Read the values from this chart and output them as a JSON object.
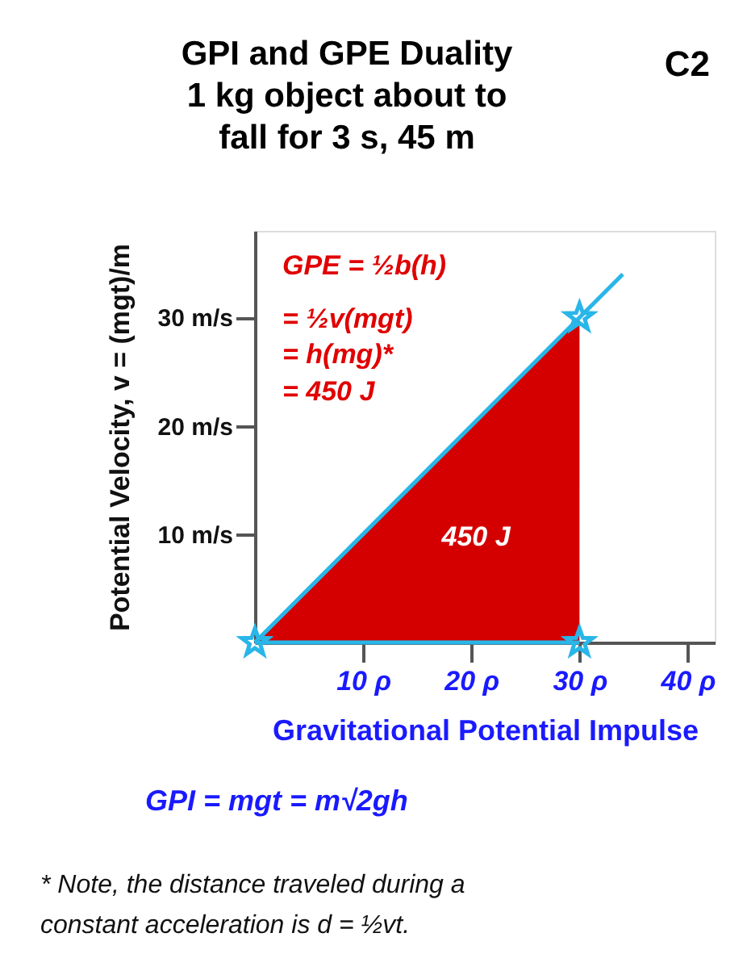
{
  "chart_data": {
    "type": "area",
    "title": "GPI and GPE Duality\n1 kg object about to\nfall for 3 s, 45 m",
    "xlabel": "Gravitational Potential Impulse",
    "ylabel": "Potential Velocity, v = (mgt)/m",
    "xlim": [
      0,
      42.5
    ],
    "ylim": [
      0,
      38
    ],
    "xticks": [
      {
        "value": 10,
        "label": "10 ρ"
      },
      {
        "value": 20,
        "label": "20 ρ"
      },
      {
        "value": 30,
        "label": "30 ρ"
      },
      {
        "value": 40,
        "label": "40 ρ"
      }
    ],
    "yticks": [
      {
        "value": 10,
        "label": "10 m/s"
      },
      {
        "value": 20,
        "label": "20 m/s"
      },
      {
        "value": 30,
        "label": "30 m/s"
      }
    ],
    "grid": false,
    "series": [
      {
        "color": "#d40000",
        "x": [
          0,
          30
        ],
        "values": [
          0,
          30
        ]
      },
      {
        "type": "line",
        "color": "#29b6e8",
        "x": [
          0,
          34
        ],
        "values": [
          0,
          34
        ]
      },
      {
        "type": "line",
        "color": "#29b6e8",
        "x": [
          0,
          30
        ],
        "values": [
          0,
          0
        ]
      },
      {
        "type": "scatter",
        "color": "#29b6e8",
        "marker": "star",
        "x": [
          0,
          30,
          30
        ],
        "values": [
          0,
          30,
          0
        ]
      }
    ],
    "annotations": [
      "C2",
      "GPE = ½b(h)",
      "= ½v(mgt)",
      "= h(mg)*",
      "= 450 J",
      "450 J",
      "GPI  =  mgt  =  m√2gh",
      "* Note, the distance traveled during a",
      "constant acceleration is d = ½vt."
    ]
  }
}
